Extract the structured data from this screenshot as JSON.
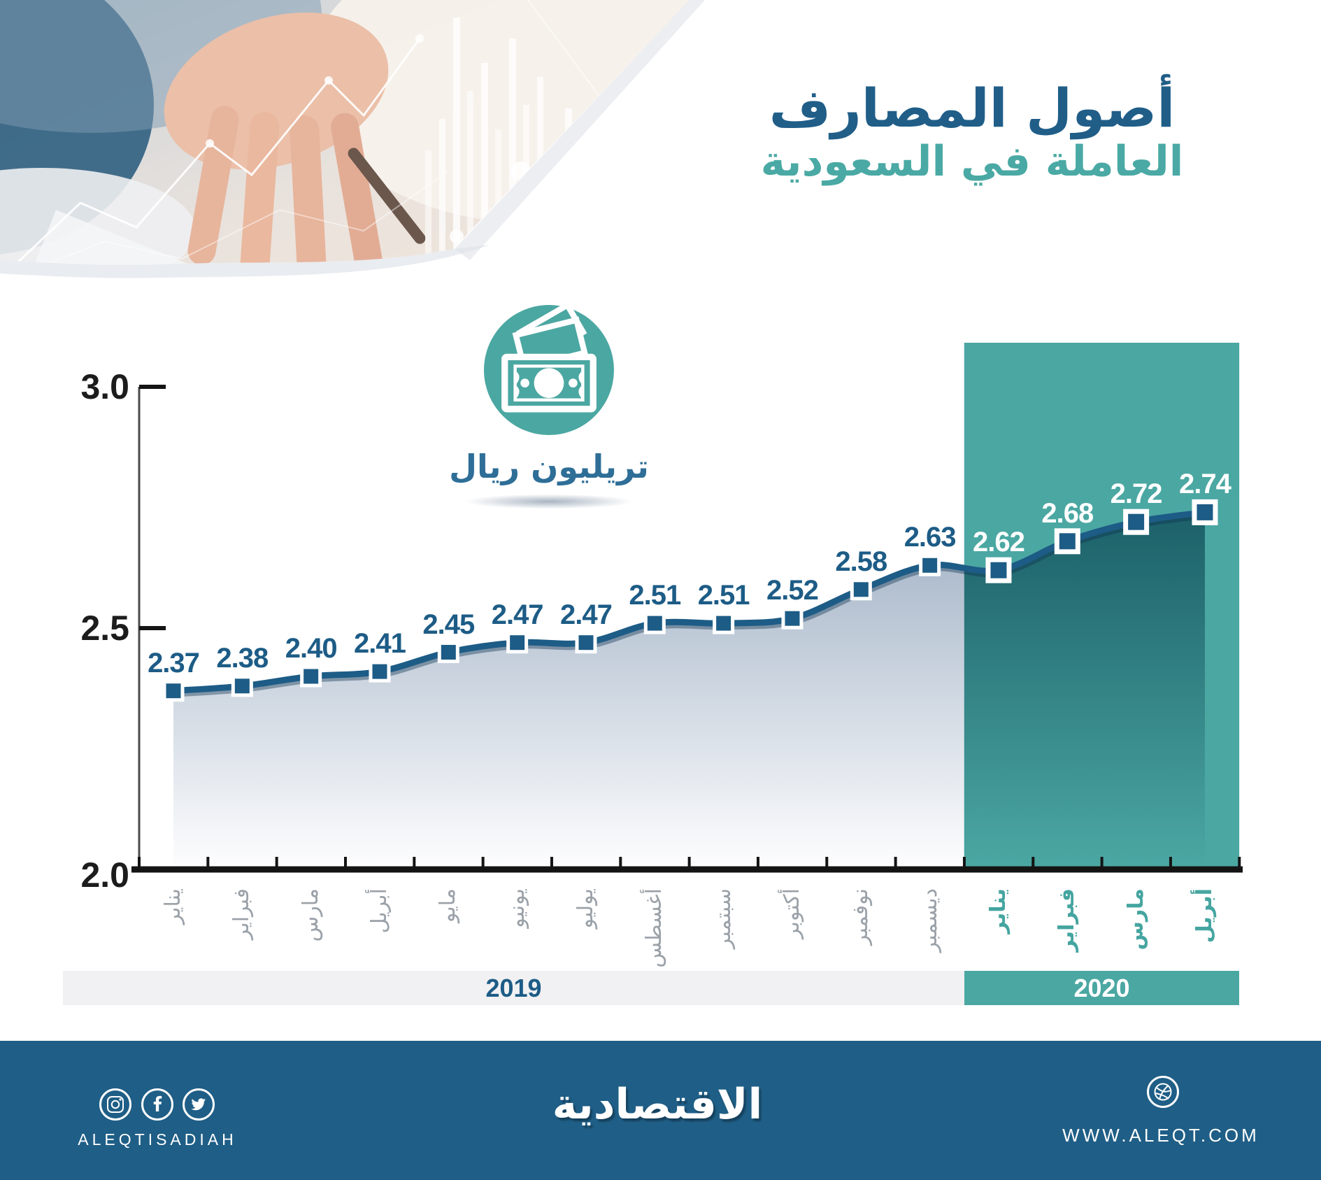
{
  "title": {
    "line1": "أصول المصارف",
    "line2": "العاملة في السعودية"
  },
  "unit_badge": {
    "icon": "banknote-icon",
    "label": "تريليون ريال"
  },
  "chart_data": {
    "type": "line",
    "title": "أصول المصارف العاملة في السعودية",
    "unit": "تريليون ريال",
    "categories": [
      "يناير",
      "فبراير",
      "مارس",
      "أبريل",
      "مايو",
      "يونيو",
      "يوليو",
      "أغسطس",
      "سبتمبر",
      "أكتوبر",
      "نوفمبر",
      "ديسمبر",
      "يناير",
      "فبراير",
      "مارس",
      "أبريل"
    ],
    "category_years": [
      "2019",
      "2019",
      "2019",
      "2019",
      "2019",
      "2019",
      "2019",
      "2019",
      "2019",
      "2019",
      "2019",
      "2019",
      "2020",
      "2020",
      "2020",
      "2020"
    ],
    "values": [
      2.37,
      2.38,
      2.4,
      2.41,
      2.45,
      2.47,
      2.47,
      2.51,
      2.51,
      2.52,
      2.58,
      2.63,
      2.62,
      2.68,
      2.72,
      2.74
    ],
    "value_labels": [
      "2.37",
      "2.38",
      "2.40",
      "2.41",
      "2.45",
      "2.47",
      "2.47",
      "2.51",
      "2.51",
      "2.52",
      "2.58",
      "2.63",
      "2.62",
      "2.68",
      "2.72",
      "2.74"
    ],
    "ylim": [
      2.0,
      3.0
    ],
    "yticks": [
      3.0,
      2.5,
      2.0
    ],
    "ytick_labels": [
      "3.0",
      "2.5",
      "2.0"
    ],
    "grid": false,
    "legend": false,
    "years": [
      {
        "label": "2019",
        "months": 12
      },
      {
        "label": "2020",
        "months": 4
      }
    ],
    "highlight_year": "2020"
  },
  "colors": {
    "line_blue": "#1d5c86",
    "title_blue": "#205e88",
    "teal": "#4ba7a2",
    "dark_teal_area": "#1c6069",
    "area_gray_blue": "#9fb0c4",
    "footer_bg": "#1f5e86",
    "band_gray": "#f1f1f3",
    "month_gray_2019": "#9aa1a8",
    "month_teal_2020": "#45a5a0",
    "axis_black": "#141414"
  },
  "footer": {
    "social_icons": [
      "instagram-icon",
      "facebook-icon",
      "twitter-icon"
    ],
    "brand_latin": "ALEQTISADIAH",
    "logo_ar": "الاقتصادية",
    "site_icon": "dribbble-ball-icon",
    "website": "WWW.ALEQT.COM"
  }
}
